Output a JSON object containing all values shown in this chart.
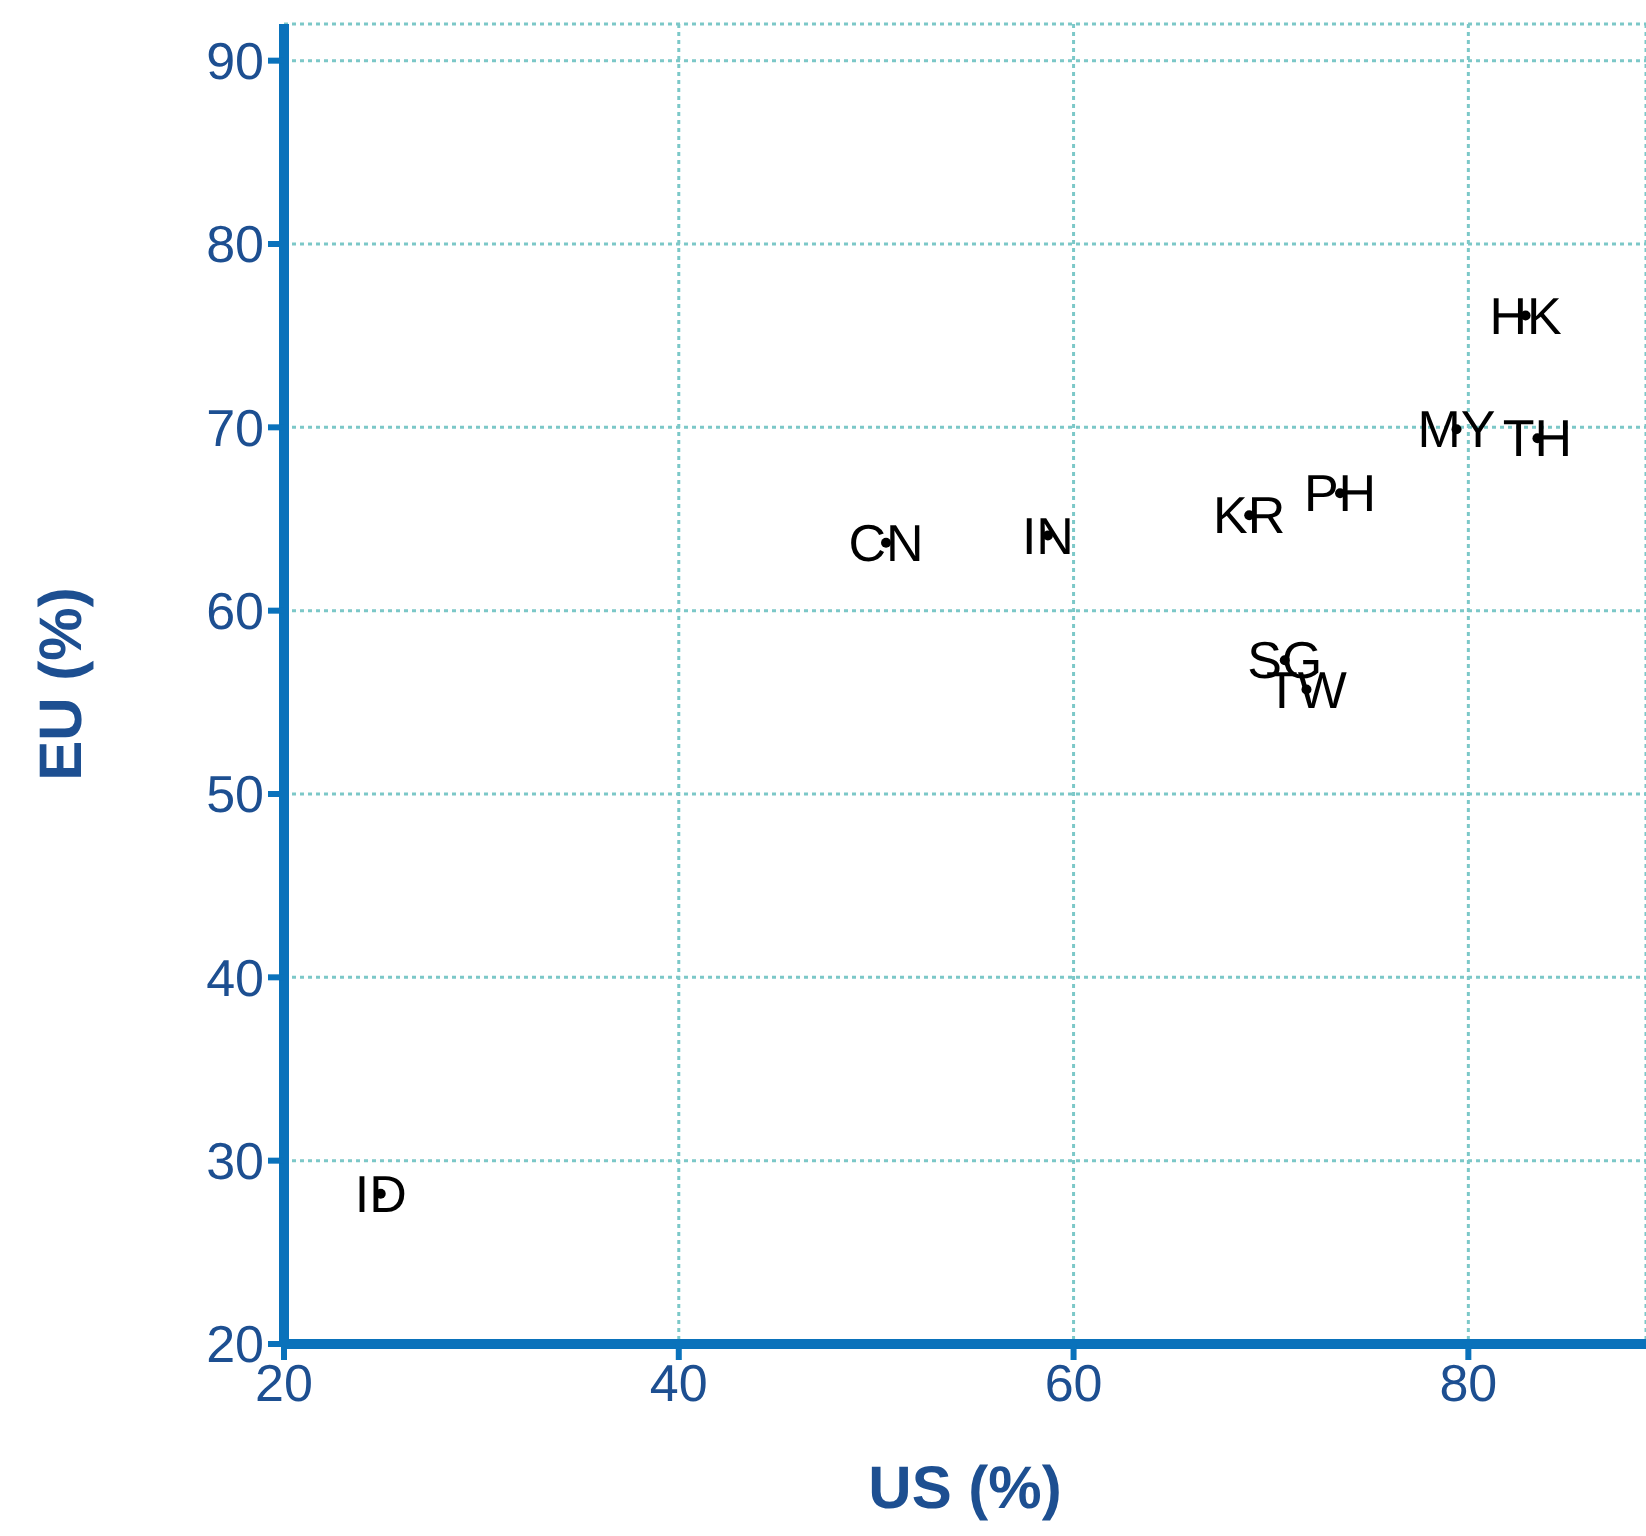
{
  "chart_data": {
    "type": "scatter",
    "xlabel": "US (%)",
    "ylabel": "EU (%)",
    "x": [
      50.5,
      58.7,
      68.9,
      73.5,
      79.4,
      83.5,
      82.9,
      70.7,
      71.8,
      24.9
    ],
    "values": [
      63.7,
      64.1,
      65.2,
      66.4,
      69.9,
      69.4,
      76.1,
      57.3,
      55.7,
      28.2
    ],
    "value_labels": [
      "CN",
      "IN",
      "KR",
      "PH",
      "MY",
      "TH",
      "HK",
      "SG",
      "TW",
      "ID"
    ],
    "color": "#000000",
    "marker": "circle",
    "xlim": [
      20,
      89
    ],
    "xticks": [
      20,
      40,
      60,
      80
    ],
    "ylim": [
      20,
      92
    ],
    "yticks": [
      20,
      30,
      40,
      50,
      60,
      70,
      80,
      90
    ],
    "grid": true,
    "legend": false
  }
}
